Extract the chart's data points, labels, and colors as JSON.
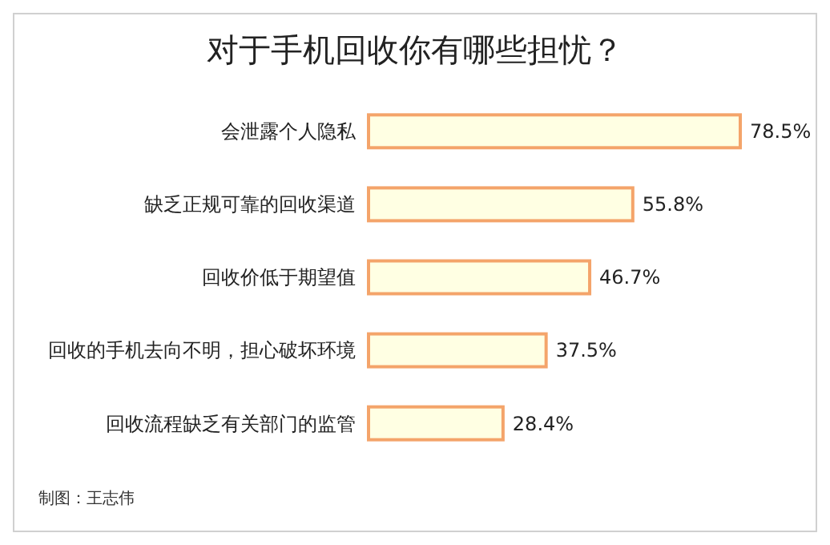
{
  "chart_data": {
    "type": "bar",
    "orientation": "horizontal",
    "title": "对于手机回收你有哪些担忧？",
    "categories": [
      "会泄露个人隐私",
      "缺乏正规可靠的回收渠道",
      "回收价低于期望值",
      "回收的手机去向不明，担心破坏环境",
      "回收流程缺乏有关部门的监管"
    ],
    "values": [
      78.5,
      55.8,
      46.7,
      37.5,
      28.4
    ],
    "value_labels": [
      "78.5%",
      "55.8%",
      "46.7%",
      "37.5%",
      "28.4%"
    ],
    "color": "#f4a46a",
    "annotations": [
      "制图：王志伟"
    ]
  }
}
